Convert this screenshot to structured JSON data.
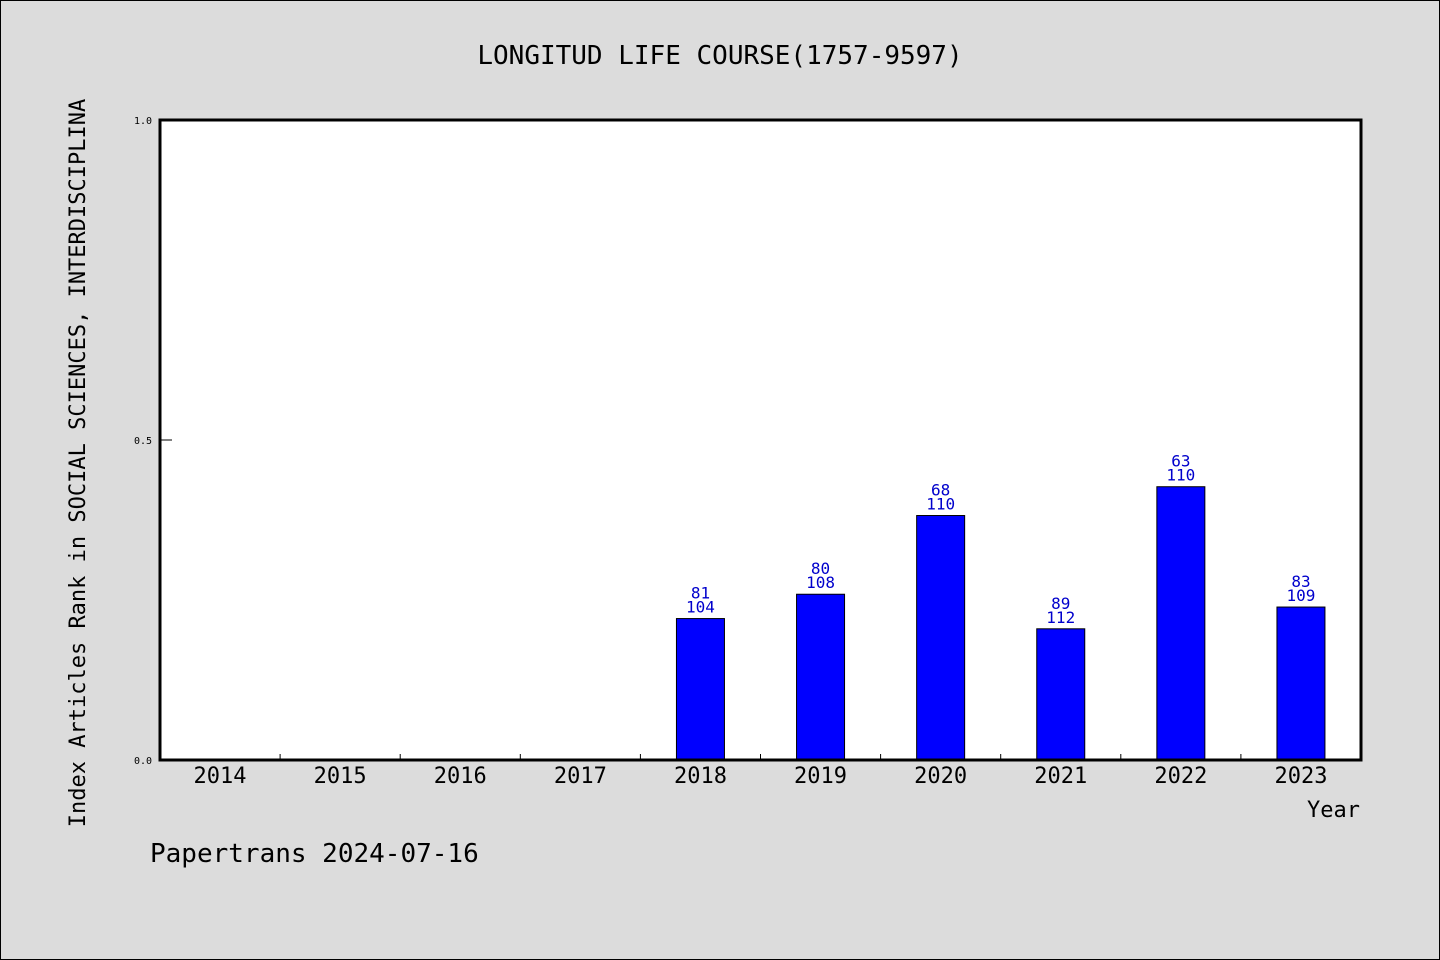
{
  "colors": {
    "background": "#dcdcdc",
    "plot_background": "#ffffff",
    "bar": "#0000ff",
    "bar_label": "#0000cc"
  },
  "footer": "Papertrans 2024-07-16",
  "chart_data": {
    "type": "bar",
    "title": "LONGITUD LIFE COURSE(1757-9597)",
    "xlabel": "Year",
    "ylabel": "Index Articles Rank in SOCIAL SCIENCES, INTERDISCIPLINA",
    "ylim": [
      0,
      1.0
    ],
    "yticks": [
      "0.0",
      "0.5",
      "1.0"
    ],
    "categories": [
      "2014",
      "2015",
      "2016",
      "2017",
      "2018",
      "2019",
      "2020",
      "2021",
      "2022",
      "2023"
    ],
    "values": [
      null,
      null,
      null,
      null,
      0.221,
      0.259,
      0.382,
      0.205,
      0.427,
      0.239
    ],
    "labels_top": [
      "",
      "",
      "",
      "",
      "81",
      "80",
      "68",
      "89",
      "63",
      "83"
    ],
    "labels_bottom": [
      "",
      "",
      "",
      "",
      "104",
      "108",
      "110",
      "112",
      "110",
      "109"
    ],
    "grid": false,
    "legend": "none"
  }
}
